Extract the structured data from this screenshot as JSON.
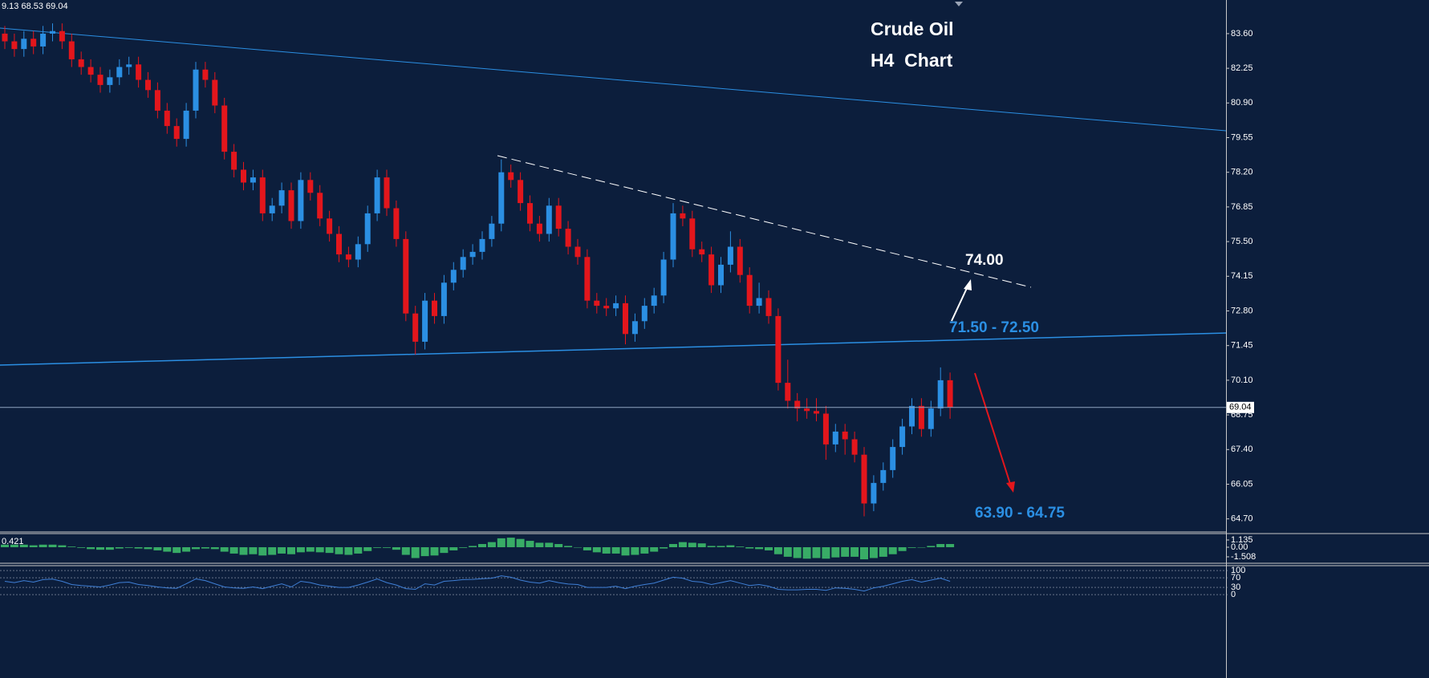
{
  "chart_data": {
    "type": "candlestick",
    "title": "Crude Oil",
    "subtitle": "H4  Chart",
    "info_text": "9.13 68.53 69.04",
    "annotations": [
      "74.00",
      "71.50 - 72.50",
      "63.90 - 64.75"
    ],
    "up_color": "#2b8fe3",
    "down_color": "#e3161c",
    "last_price": 69.04,
    "ylim": [
      64.19,
      84.91
    ],
    "yticks": [
      {
        "value": 83.6,
        "label": "83.60"
      },
      82.25,
      {
        "value": 80.9,
        "label": "80.90"
      },
      79.55,
      {
        "value": 78.2,
        "label": "78.20"
      },
      76.85,
      {
        "value": 75.5,
        "label": "75.50"
      },
      74.15,
      {
        "value": 72.8,
        "label": "72.80"
      },
      71.45,
      {
        "value": 70.1,
        "label": "70.10"
      },
      68.75,
      {
        "value": 67.4,
        "label": "67.40"
      },
      66.05,
      {
        "value": 64.7,
        "label": "64.70"
      }
    ],
    "open": [
      83.6,
      83.3,
      83.0,
      83.4,
      83.1,
      83.6,
      83.7,
      83.3,
      82.6,
      82.3,
      82.0,
      81.6,
      81.9,
      82.3,
      82.4,
      81.8,
      81.4,
      80.6,
      80.0,
      79.5,
      80.6,
      82.2,
      81.8,
      80.8,
      79.0,
      78.3,
      77.8,
      78.0,
      76.6,
      76.9,
      77.5,
      76.3,
      77.9,
      77.4,
      76.4,
      75.8,
      75.0,
      74.8,
      75.4,
      76.6,
      78.0,
      76.8,
      75.6,
      72.7,
      71.6,
      73.2,
      72.6,
      73.9,
      74.4,
      74.9,
      75.1,
      75.6,
      76.2,
      78.2,
      77.9,
      77.0,
      76.2,
      75.8,
      76.9,
      76.0,
      75.3,
      74.9,
      73.2,
      73.0,
      72.9,
      73.1,
      71.9,
      72.4,
      73.0,
      73.4,
      74.8,
      76.6,
      76.4,
      75.2,
      75.0,
      73.8,
      74.6,
      75.3,
      74.2,
      73.0,
      73.3,
      72.6,
      70.0,
      69.3,
      69.0,
      68.9,
      68.8,
      67.6,
      68.1,
      67.8,
      67.2,
      65.3,
      66.1,
      66.6,
      67.5,
      68.3,
      69.1,
      68.2,
      69.0,
      70.1
    ],
    "high": [
      83.9,
      83.6,
      83.7,
      83.7,
      83.9,
      84.0,
      84.0,
      83.6,
      82.9,
      82.6,
      82.3,
      82.2,
      82.6,
      82.7,
      82.7,
      82.1,
      81.7,
      80.9,
      80.3,
      80.9,
      82.5,
      82.5,
      82.1,
      81.1,
      79.3,
      78.6,
      78.3,
      78.3,
      77.2,
      77.8,
      77.8,
      78.2,
      78.2,
      77.7,
      76.7,
      76.1,
      75.3,
      75.7,
      76.9,
      78.3,
      78.3,
      77.1,
      75.9,
      73.0,
      73.5,
      73.5,
      74.2,
      74.7,
      75.2,
      75.4,
      75.9,
      76.5,
      78.7,
      78.5,
      78.2,
      77.3,
      76.5,
      77.2,
      77.2,
      76.3,
      75.6,
      75.2,
      73.5,
      73.3,
      73.4,
      73.4,
      72.7,
      73.3,
      73.7,
      75.1,
      77.0,
      76.9,
      76.7,
      75.5,
      75.3,
      74.9,
      75.9,
      75.6,
      74.5,
      73.9,
      73.6,
      72.9,
      70.9,
      69.6,
      69.4,
      69.4,
      69.1,
      68.4,
      68.4,
      68.1,
      67.5,
      66.4,
      66.9,
      67.8,
      68.6,
      69.4,
      69.4,
      69.3,
      70.6,
      70.4
    ],
    "low": [
      83.0,
      82.7,
      82.7,
      82.8,
      82.8,
      83.3,
      83.0,
      82.3,
      82.0,
      81.7,
      81.3,
      81.3,
      81.6,
      82.0,
      81.5,
      81.1,
      80.3,
      79.7,
      79.2,
      79.2,
      80.3,
      81.5,
      80.5,
      78.7,
      78.0,
      77.5,
      77.5,
      76.3,
      76.3,
      76.6,
      76.0,
      76.0,
      77.1,
      76.1,
      75.5,
      74.7,
      74.5,
      74.5,
      75.1,
      76.3,
      76.5,
      75.3,
      72.4,
      71.1,
      71.3,
      72.3,
      72.3,
      73.6,
      74.1,
      74.6,
      74.8,
      75.3,
      75.9,
      77.6,
      76.7,
      75.9,
      75.5,
      75.5,
      75.7,
      75.0,
      74.6,
      72.9,
      72.7,
      72.6,
      72.6,
      71.5,
      71.6,
      72.1,
      72.7,
      73.1,
      74.5,
      76.1,
      74.9,
      74.7,
      73.5,
      73.5,
      74.3,
      73.9,
      72.7,
      72.7,
      72.3,
      69.7,
      69.0,
      68.5,
      68.6,
      68.5,
      67.0,
      67.3,
      67.2,
      66.9,
      64.8,
      65.0,
      65.8,
      66.3,
      67.2,
      68.0,
      67.9,
      67.9,
      68.7,
      68.6
    ],
    "close": [
      83.3,
      83.0,
      83.4,
      83.1,
      83.6,
      83.7,
      83.3,
      82.6,
      82.3,
      82.0,
      81.6,
      81.9,
      82.3,
      82.4,
      81.8,
      81.4,
      80.6,
      80.0,
      79.5,
      80.6,
      82.2,
      81.8,
      80.8,
      79.0,
      78.3,
      77.8,
      78.0,
      76.6,
      76.9,
      77.5,
      76.3,
      77.9,
      77.4,
      76.4,
      75.8,
      75.0,
      74.8,
      75.4,
      76.6,
      78.0,
      76.8,
      75.6,
      72.7,
      71.6,
      73.2,
      72.6,
      73.9,
      74.4,
      74.9,
      75.1,
      75.6,
      76.2,
      78.2,
      77.9,
      77.0,
      76.2,
      75.8,
      76.9,
      76.0,
      75.3,
      74.9,
      73.2,
      73.0,
      72.9,
      73.1,
      71.9,
      72.4,
      73.0,
      73.4,
      74.8,
      76.6,
      76.4,
      75.2,
      75.0,
      73.8,
      74.6,
      75.3,
      74.2,
      73.0,
      73.3,
      72.6,
      70.0,
      69.3,
      69.0,
      68.9,
      68.8,
      67.6,
      68.1,
      67.8,
      67.2,
      65.3,
      66.1,
      66.6,
      67.5,
      68.3,
      69.1,
      68.2,
      69.0,
      70.1,
      69.04
    ],
    "macd": {
      "current": 0.421,
      "color": "#3dbb6a",
      "ylim": [
        -2.52,
        2.14
      ],
      "yticks": [
        1.135,
        {
          "value": 0,
          "label": "0.00"
        },
        -1.508
      ],
      "values": [
        0.4,
        0.4,
        0.4,
        0.3,
        0.4,
        0.4,
        0.3,
        0.1,
        -0.1,
        -0.3,
        -0.4,
        -0.4,
        -0.2,
        -0.1,
        -0.2,
        -0.3,
        -0.5,
        -0.7,
        -0.9,
        -0.7,
        -0.3,
        -0.2,
        -0.3,
        -0.7,
        -1.0,
        -1.2,
        -1.1,
        -1.3,
        -1.2,
        -1.0,
        -1.1,
        -0.8,
        -0.7,
        -0.8,
        -0.9,
        -1.1,
        -1.2,
        -1.0,
        -0.6,
        -0.1,
        -0.1,
        -0.4,
        -1.2,
        -1.7,
        -1.4,
        -1.3,
        -0.9,
        -0.5,
        -0.1,
        0.2,
        0.5,
        0.8,
        1.4,
        1.5,
        1.3,
        1.0,
        0.7,
        0.7,
        0.5,
        0.2,
        0.0,
        -0.5,
        -0.8,
        -1.0,
        -1.0,
        -1.3,
        -1.2,
        -1.0,
        -0.7,
        -0.2,
        0.5,
        0.8,
        0.7,
        0.6,
        0.2,
        0.2,
        0.3,
        0.1,
        -0.2,
        -0.3,
        -0.5,
        -1.1,
        -1.5,
        -1.7,
        -1.8,
        -1.7,
        -1.8,
        -1.6,
        -1.5,
        -1.5,
        -1.9,
        -1.7,
        -1.5,
        -1.1,
        -0.6,
        -0.1,
        0.0,
        0.2,
        0.5,
        0.5
      ]
    },
    "rsi": {
      "color": "#3f7fd6",
      "ylim": [
        -13,
        120
      ],
      "yticks": [
        100,
        70,
        30,
        0
      ],
      "values": [
        55,
        50,
        58,
        52,
        62,
        64,
        55,
        42,
        38,
        35,
        32,
        40,
        50,
        52,
        42,
        38,
        32,
        28,
        26,
        45,
        65,
        58,
        45,
        32,
        28,
        26,
        32,
        25,
        35,
        45,
        32,
        55,
        50,
        40,
        35,
        30,
        30,
        40,
        52,
        65,
        50,
        40,
        25,
        22,
        45,
        40,
        55,
        58,
        62,
        63,
        66,
        68,
        78,
        72,
        60,
        52,
        48,
        58,
        50,
        44,
        42,
        30,
        30,
        30,
        35,
        25,
        35,
        42,
        48,
        60,
        72,
        68,
        55,
        52,
        42,
        50,
        58,
        48,
        38,
        42,
        35,
        22,
        20,
        20,
        22,
        22,
        18,
        28,
        26,
        22,
        15,
        28,
        35,
        45,
        55,
        62,
        52,
        60,
        68,
        55
      ]
    }
  }
}
